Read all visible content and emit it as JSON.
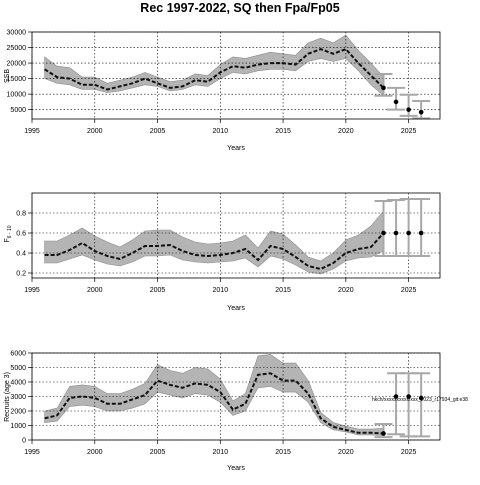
{
  "chart_data": {
    "title": "Rec 1997-2022, SQ then Fpa/Fp05",
    "type": "line",
    "panels": [
      {
        "id": "ssb",
        "ylabel": "SSB",
        "xlabel": "Years",
        "xlim": [
          1995,
          2027.5
        ],
        "ylim": [
          2000,
          30000
        ],
        "xticks": [
          1995,
          2000,
          2005,
          2010,
          2015,
          2020,
          2025
        ],
        "yticks": [
          5000,
          10000,
          15000,
          20000,
          25000,
          30000
        ],
        "history": {
          "years": [
            1996,
            1997,
            1998,
            1999,
            2000,
            2001,
            2002,
            2003,
            2004,
            2005,
            2006,
            2007,
            2008,
            2009,
            2010,
            2011,
            2012,
            2013,
            2014,
            2015,
            2016,
            2017,
            2018,
            2019,
            2020,
            2021,
            2022,
            2023
          ],
          "median": [
            18000,
            15500,
            15000,
            13000,
            13000,
            11500,
            12500,
            13500,
            15000,
            13500,
            12000,
            12500,
            14500,
            14000,
            17000,
            19000,
            18500,
            19500,
            20000,
            20000,
            19500,
            23000,
            24500,
            23000,
            24500,
            20000,
            16000,
            12000
          ],
          "lower": [
            15000,
            13500,
            13000,
            11500,
            11500,
            10500,
            11000,
            12000,
            13000,
            12500,
            11000,
            11500,
            13000,
            12500,
            15000,
            17000,
            16500,
            17500,
            18000,
            18000,
            17500,
            20500,
            21500,
            20500,
            21500,
            17500,
            13000,
            9500
          ],
          "upper": [
            22000,
            19000,
            18500,
            15500,
            15500,
            13500,
            14500,
            15500,
            17000,
            15500,
            14000,
            14500,
            16500,
            16000,
            19500,
            22000,
            21500,
            22500,
            23500,
            23000,
            22500,
            26500,
            28000,
            26500,
            29000,
            24000,
            20000,
            15500
          ]
        },
        "forecast": {
          "years": [
            2023,
            2024,
            2025,
            2026
          ],
          "median": [
            12000,
            7500,
            5000,
            4200
          ],
          "lower": [
            9500,
            5000,
            3000,
            2200
          ],
          "upper": [
            16500,
            12000,
            9800,
            7800
          ]
        }
      },
      {
        "id": "fbar",
        "ylabel": "F",
        "ylabel_sub": "6 - 10",
        "xlabel": "Years",
        "xlim": [
          1995,
          2027.5
        ],
        "ylim": [
          0.15,
          1.0
        ],
        "xticks": [
          1995,
          2000,
          2005,
          2010,
          2015,
          2020,
          2025
        ],
        "yticks": [
          0.2,
          0.4,
          0.6,
          0.8
        ],
        "history": {
          "years": [
            1996,
            1997,
            1998,
            1999,
            2000,
            2001,
            2002,
            2003,
            2004,
            2005,
            2006,
            2007,
            2008,
            2009,
            2010,
            2011,
            2012,
            2013,
            2014,
            2015,
            2016,
            2017,
            2018,
            2019,
            2020,
            2021,
            2022,
            2023
          ],
          "median": [
            0.38,
            0.38,
            0.43,
            0.5,
            0.42,
            0.37,
            0.34,
            0.4,
            0.47,
            0.47,
            0.48,
            0.42,
            0.38,
            0.37,
            0.38,
            0.4,
            0.44,
            0.33,
            0.47,
            0.44,
            0.36,
            0.27,
            0.24,
            0.3,
            0.4,
            0.44,
            0.46,
            0.6
          ],
          "lower": [
            0.3,
            0.3,
            0.34,
            0.38,
            0.33,
            0.29,
            0.27,
            0.31,
            0.37,
            0.37,
            0.38,
            0.33,
            0.31,
            0.3,
            0.31,
            0.32,
            0.35,
            0.26,
            0.37,
            0.34,
            0.28,
            0.21,
            0.19,
            0.24,
            0.32,
            0.35,
            0.36,
            0.42
          ],
          "upper": [
            0.52,
            0.52,
            0.58,
            0.65,
            0.57,
            0.51,
            0.46,
            0.53,
            0.62,
            0.63,
            0.63,
            0.56,
            0.51,
            0.49,
            0.5,
            0.52,
            0.58,
            0.45,
            0.62,
            0.59,
            0.48,
            0.36,
            0.32,
            0.4,
            0.53,
            0.58,
            0.67,
            0.82
          ]
        },
        "forecast": {
          "years": [
            2023,
            2024,
            2025,
            2026
          ],
          "median": [
            0.6,
            0.6,
            0.6,
            0.6
          ],
          "lower": [
            0.37,
            0.37,
            0.37,
            0.37
          ],
          "upper": [
            0.92,
            0.93,
            0.94,
            0.94
          ]
        }
      },
      {
        "id": "rec",
        "ylabel": "Recruits (age 3)",
        "xlabel": "Years",
        "xlim": [
          1995,
          2027.5
        ],
        "ylim": [
          0,
          6000
        ],
        "xticks": [
          1995,
          2000,
          2005,
          2010,
          2015,
          2020,
          2025
        ],
        "yticks": [
          0,
          1000,
          2000,
          3000,
          4000,
          5000,
          6000
        ],
        "note": "hkch/xxxxxxxxxx/xxx_2023_r17934_git:e38",
        "history": {
          "years": [
            1996,
            1997,
            1998,
            1999,
            2000,
            2001,
            2002,
            2003,
            2004,
            2005,
            2006,
            2007,
            2008,
            2009,
            2010,
            2011,
            2012,
            2013,
            2014,
            2015,
            2016,
            2017,
            2018,
            2019,
            2020,
            2021,
            2022,
            2023
          ],
          "median": [
            1500,
            1700,
            2900,
            3000,
            2900,
            2500,
            2500,
            2800,
            3100,
            4100,
            3800,
            3600,
            3900,
            3800,
            3300,
            2100,
            2500,
            4500,
            4600,
            4100,
            4100,
            3200,
            1500,
            900,
            700,
            500,
            500,
            450
          ],
          "lower": [
            1200,
            1300,
            2300,
            2400,
            2300,
            2000,
            2000,
            2200,
            2500,
            3300,
            3100,
            2900,
            3200,
            3100,
            2600,
            1700,
            2000,
            3600,
            3700,
            3300,
            3300,
            2600,
            1200,
            700,
            550,
            350,
            350,
            300
          ],
          "upper": [
            2000,
            2200,
            3700,
            3800,
            3700,
            3200,
            3200,
            3500,
            3900,
            5200,
            4800,
            4600,
            5000,
            4900,
            4200,
            2700,
            3200,
            5800,
            5900,
            5300,
            5300,
            4100,
            1900,
            1200,
            950,
            750,
            750,
            800
          ]
        },
        "forecast": {
          "years": [
            2023,
            2024,
            2025,
            2026
          ],
          "median": [
            450,
            3000,
            3000,
            2900
          ],
          "lower": [
            200,
            400,
            250,
            250
          ],
          "upper": [
            1100,
            4600,
            4600,
            4600
          ]
        }
      }
    ]
  }
}
